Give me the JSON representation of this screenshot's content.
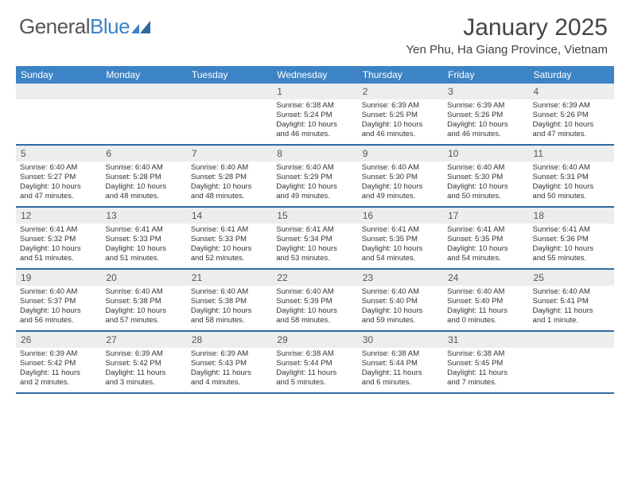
{
  "colors": {
    "header_bar": "#3d84c6",
    "week_border": "#2f6aa3",
    "daynum_bg": "#eceded",
    "text": "#333333",
    "background": "#ffffff"
  },
  "fonts": {
    "title_size_pt": 30,
    "location_size_pt": 15,
    "dayheader_size_pt": 12,
    "daynum_size_pt": 12,
    "body_size_pt": 9.5
  },
  "logo": {
    "text1": "General",
    "text2": "Blue"
  },
  "title": {
    "month": "January 2025",
    "location": "Yen Phu, Ha Giang Province, Vietnam"
  },
  "day_names": [
    "Sunday",
    "Monday",
    "Tuesday",
    "Wednesday",
    "Thursday",
    "Friday",
    "Saturday"
  ],
  "weeks": [
    [
      null,
      null,
      null,
      {
        "n": "1",
        "sr": "Sunrise: 6:38 AM",
        "ss": "Sunset: 5:24 PM",
        "d1": "Daylight: 10 hours",
        "d2": "and 46 minutes."
      },
      {
        "n": "2",
        "sr": "Sunrise: 6:39 AM",
        "ss": "Sunset: 5:25 PM",
        "d1": "Daylight: 10 hours",
        "d2": "and 46 minutes."
      },
      {
        "n": "3",
        "sr": "Sunrise: 6:39 AM",
        "ss": "Sunset: 5:26 PM",
        "d1": "Daylight: 10 hours",
        "d2": "and 46 minutes."
      },
      {
        "n": "4",
        "sr": "Sunrise: 6:39 AM",
        "ss": "Sunset: 5:26 PM",
        "d1": "Daylight: 10 hours",
        "d2": "and 47 minutes."
      }
    ],
    [
      {
        "n": "5",
        "sr": "Sunrise: 6:40 AM",
        "ss": "Sunset: 5:27 PM",
        "d1": "Daylight: 10 hours",
        "d2": "and 47 minutes."
      },
      {
        "n": "6",
        "sr": "Sunrise: 6:40 AM",
        "ss": "Sunset: 5:28 PM",
        "d1": "Daylight: 10 hours",
        "d2": "and 48 minutes."
      },
      {
        "n": "7",
        "sr": "Sunrise: 6:40 AM",
        "ss": "Sunset: 5:28 PM",
        "d1": "Daylight: 10 hours",
        "d2": "and 48 minutes."
      },
      {
        "n": "8",
        "sr": "Sunrise: 6:40 AM",
        "ss": "Sunset: 5:29 PM",
        "d1": "Daylight: 10 hours",
        "d2": "and 49 minutes."
      },
      {
        "n": "9",
        "sr": "Sunrise: 6:40 AM",
        "ss": "Sunset: 5:30 PM",
        "d1": "Daylight: 10 hours",
        "d2": "and 49 minutes."
      },
      {
        "n": "10",
        "sr": "Sunrise: 6:40 AM",
        "ss": "Sunset: 5:30 PM",
        "d1": "Daylight: 10 hours",
        "d2": "and 50 minutes."
      },
      {
        "n": "11",
        "sr": "Sunrise: 6:40 AM",
        "ss": "Sunset: 5:31 PM",
        "d1": "Daylight: 10 hours",
        "d2": "and 50 minutes."
      }
    ],
    [
      {
        "n": "12",
        "sr": "Sunrise: 6:41 AM",
        "ss": "Sunset: 5:32 PM",
        "d1": "Daylight: 10 hours",
        "d2": "and 51 minutes."
      },
      {
        "n": "13",
        "sr": "Sunrise: 6:41 AM",
        "ss": "Sunset: 5:33 PM",
        "d1": "Daylight: 10 hours",
        "d2": "and 51 minutes."
      },
      {
        "n": "14",
        "sr": "Sunrise: 6:41 AM",
        "ss": "Sunset: 5:33 PM",
        "d1": "Daylight: 10 hours",
        "d2": "and 52 minutes."
      },
      {
        "n": "15",
        "sr": "Sunrise: 6:41 AM",
        "ss": "Sunset: 5:34 PM",
        "d1": "Daylight: 10 hours",
        "d2": "and 53 minutes."
      },
      {
        "n": "16",
        "sr": "Sunrise: 6:41 AM",
        "ss": "Sunset: 5:35 PM",
        "d1": "Daylight: 10 hours",
        "d2": "and 54 minutes."
      },
      {
        "n": "17",
        "sr": "Sunrise: 6:41 AM",
        "ss": "Sunset: 5:35 PM",
        "d1": "Daylight: 10 hours",
        "d2": "and 54 minutes."
      },
      {
        "n": "18",
        "sr": "Sunrise: 6:41 AM",
        "ss": "Sunset: 5:36 PM",
        "d1": "Daylight: 10 hours",
        "d2": "and 55 minutes."
      }
    ],
    [
      {
        "n": "19",
        "sr": "Sunrise: 6:40 AM",
        "ss": "Sunset: 5:37 PM",
        "d1": "Daylight: 10 hours",
        "d2": "and 56 minutes."
      },
      {
        "n": "20",
        "sr": "Sunrise: 6:40 AM",
        "ss": "Sunset: 5:38 PM",
        "d1": "Daylight: 10 hours",
        "d2": "and 57 minutes."
      },
      {
        "n": "21",
        "sr": "Sunrise: 6:40 AM",
        "ss": "Sunset: 5:38 PM",
        "d1": "Daylight: 10 hours",
        "d2": "and 58 minutes."
      },
      {
        "n": "22",
        "sr": "Sunrise: 6:40 AM",
        "ss": "Sunset: 5:39 PM",
        "d1": "Daylight: 10 hours",
        "d2": "and 58 minutes."
      },
      {
        "n": "23",
        "sr": "Sunrise: 6:40 AM",
        "ss": "Sunset: 5:40 PM",
        "d1": "Daylight: 10 hours",
        "d2": "and 59 minutes."
      },
      {
        "n": "24",
        "sr": "Sunrise: 6:40 AM",
        "ss": "Sunset: 5:40 PM",
        "d1": "Daylight: 11 hours",
        "d2": "and 0 minutes."
      },
      {
        "n": "25",
        "sr": "Sunrise: 6:40 AM",
        "ss": "Sunset: 5:41 PM",
        "d1": "Daylight: 11 hours",
        "d2": "and 1 minute."
      }
    ],
    [
      {
        "n": "26",
        "sr": "Sunrise: 6:39 AM",
        "ss": "Sunset: 5:42 PM",
        "d1": "Daylight: 11 hours",
        "d2": "and 2 minutes."
      },
      {
        "n": "27",
        "sr": "Sunrise: 6:39 AM",
        "ss": "Sunset: 5:42 PM",
        "d1": "Daylight: 11 hours",
        "d2": "and 3 minutes."
      },
      {
        "n": "28",
        "sr": "Sunrise: 6:39 AM",
        "ss": "Sunset: 5:43 PM",
        "d1": "Daylight: 11 hours",
        "d2": "and 4 minutes."
      },
      {
        "n": "29",
        "sr": "Sunrise: 6:38 AM",
        "ss": "Sunset: 5:44 PM",
        "d1": "Daylight: 11 hours",
        "d2": "and 5 minutes."
      },
      {
        "n": "30",
        "sr": "Sunrise: 6:38 AM",
        "ss": "Sunset: 5:44 PM",
        "d1": "Daylight: 11 hours",
        "d2": "and 6 minutes."
      },
      {
        "n": "31",
        "sr": "Sunrise: 6:38 AM",
        "ss": "Sunset: 5:45 PM",
        "d1": "Daylight: 11 hours",
        "d2": "and 7 minutes."
      },
      null
    ]
  ]
}
